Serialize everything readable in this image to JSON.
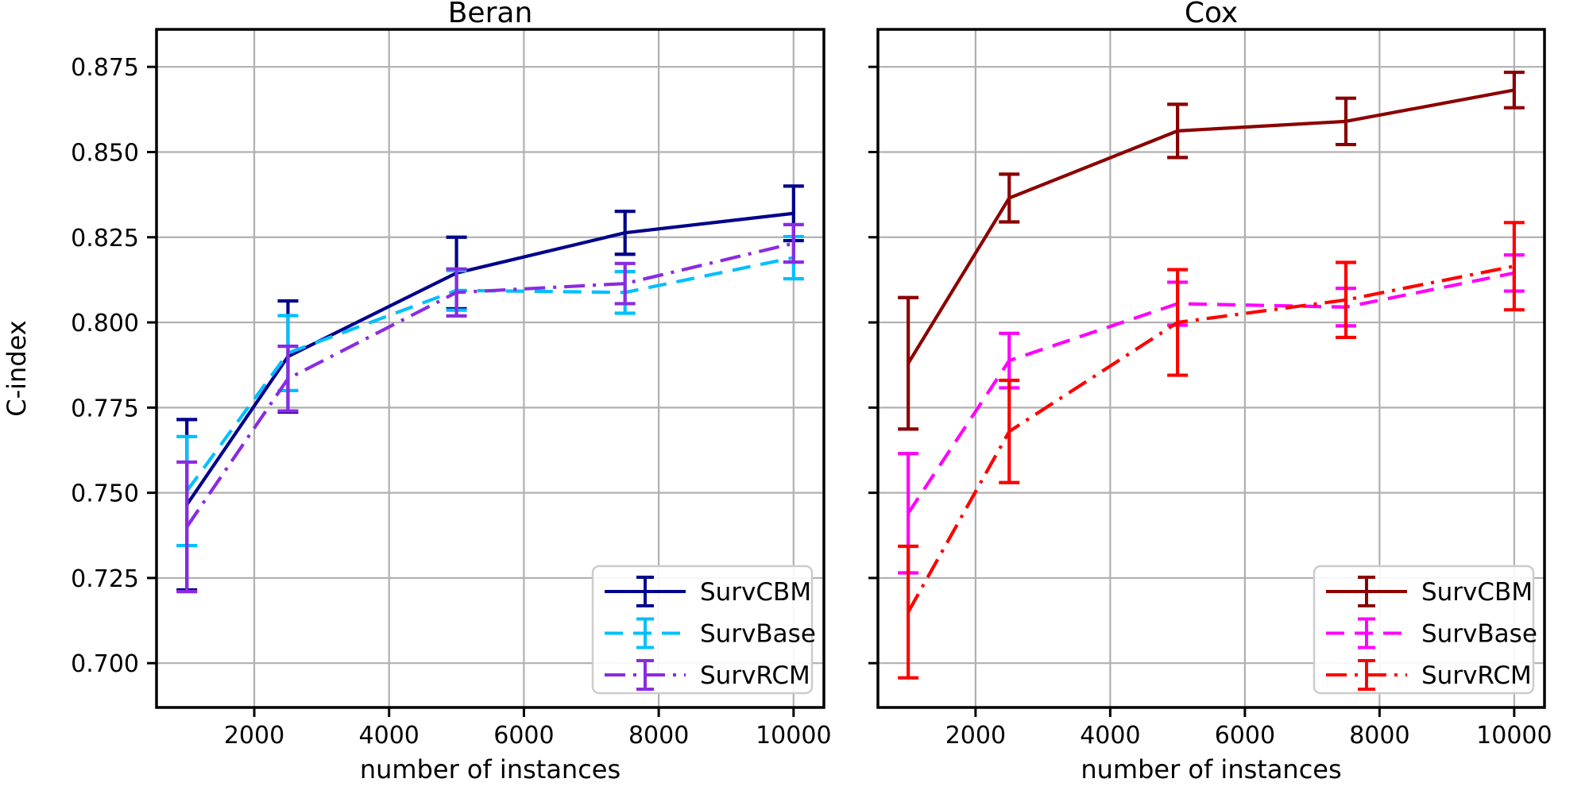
{
  "figure": {
    "background": "#ffffff",
    "grid_color": "#b0b0b0",
    "spine_color": "#000000",
    "legend_border_color": "#cccccc"
  },
  "chart_data": [
    {
      "type": "line",
      "title": "Beran",
      "xlabel": "number of instances",
      "ylabel": "C-index",
      "x": [
        1000,
        2500,
        5000,
        7500,
        10000
      ],
      "xticks": [
        2000,
        4000,
        6000,
        8000,
        10000
      ],
      "xtick_labels": [
        "2000",
        "4000",
        "6000",
        "8000",
        "10000"
      ],
      "yticks": [
        0.875,
        0.85,
        0.825,
        0.8,
        0.775,
        0.75,
        0.725,
        0.7
      ],
      "ytick_labels": [
        "0.875",
        "0.850",
        "0.825",
        "0.800",
        "0.775",
        "0.750",
        "0.725",
        "0.700"
      ],
      "xlim": [
        550,
        10450
      ],
      "ylim": [
        0.687,
        0.886
      ],
      "grid": true,
      "legend_position": "lower right",
      "series": [
        {
          "name": "SurvCBM",
          "color": "#00008B",
          "style": "solid",
          "values": [
            0.7465,
            0.79,
            0.8145,
            0.8263,
            0.832
          ],
          "yerr": [
            0.025,
            0.0163,
            0.0105,
            0.0063,
            0.008
          ]
        },
        {
          "name": "SurvBase",
          "color": "#00BFFF",
          "style": "dashed",
          "values": [
            0.7505,
            0.791,
            0.8094,
            0.8088,
            0.819
          ],
          "yerr": [
            0.016,
            0.011,
            0.0058,
            0.0061,
            0.0062
          ]
        },
        {
          "name": "SurvRCM",
          "color": "#8A2BE2",
          "style": "dashdot",
          "values": [
            0.74,
            0.7835,
            0.8088,
            0.8114,
            0.8232
          ],
          "yerr": [
            0.019,
            0.0095,
            0.0069,
            0.0059,
            0.0055
          ]
        }
      ]
    },
    {
      "type": "line",
      "title": "Cox",
      "xlabel": "number of instances",
      "ylabel": "",
      "x": [
        1000,
        2500,
        5000,
        7500,
        10000
      ],
      "xticks": [
        2000,
        4000,
        6000,
        8000,
        10000
      ],
      "xtick_labels": [
        "2000",
        "4000",
        "6000",
        "8000",
        "10000"
      ],
      "yticks": [
        0.875,
        0.85,
        0.825,
        0.8,
        0.775,
        0.75,
        0.725,
        0.7
      ],
      "ytick_labels": [],
      "xlim": [
        550,
        10450
      ],
      "ylim": [
        0.687,
        0.886
      ],
      "grid": true,
      "legend_position": "lower right",
      "series": [
        {
          "name": "SurvCBM",
          "color": "#8B0000",
          "style": "solid",
          "values": [
            0.788,
            0.8365,
            0.8562,
            0.859,
            0.8682
          ],
          "yerr": [
            0.0193,
            0.007,
            0.0078,
            0.0068,
            0.0052
          ]
        },
        {
          "name": "SurvBase",
          "color": "#FF00FF",
          "style": "dashed",
          "values": [
            0.744,
            0.7888,
            0.8055,
            0.8045,
            0.8145
          ],
          "yerr": [
            0.0175,
            0.008,
            0.0063,
            0.0055,
            0.0053
          ]
        },
        {
          "name": "SurvRCM",
          "color": "#FF0000",
          "style": "dashdot",
          "values": [
            0.715,
            0.768,
            0.8,
            0.8066,
            0.8165
          ],
          "yerr": [
            0.0193,
            0.015,
            0.0155,
            0.011,
            0.0128
          ]
        }
      ]
    }
  ]
}
